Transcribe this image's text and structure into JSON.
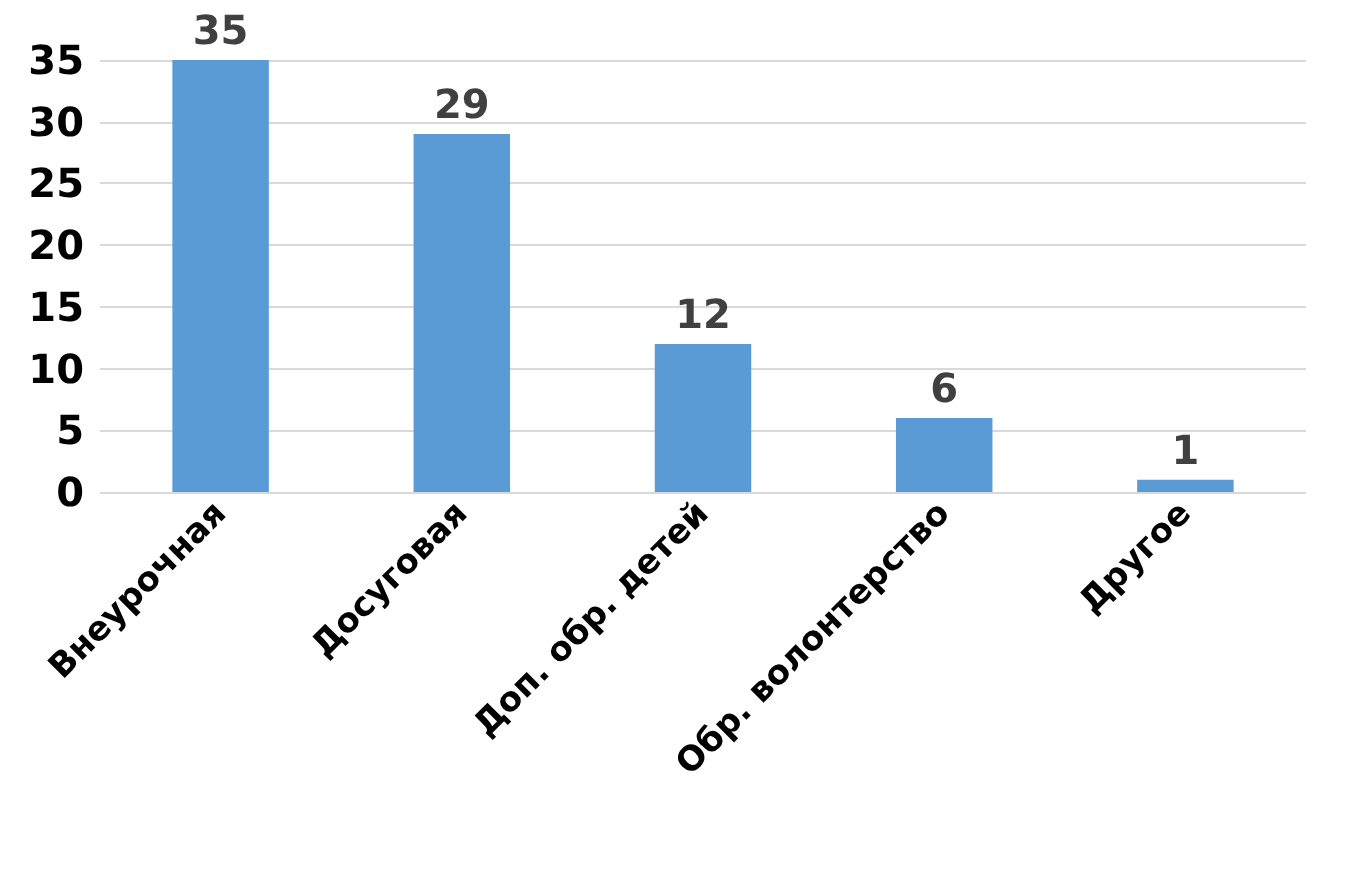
{
  "chart_data": {
    "type": "bar",
    "categories": [
      "Внеурочная",
      "Досуговая",
      "Доп. обр. детей",
      "Обр. волонтерство",
      "Другое"
    ],
    "values": [
      35,
      29,
      12,
      6,
      1
    ],
    "color": "#5b9bd5",
    "ylim": [
      0,
      35
    ],
    "yticks": [
      0,
      5,
      10,
      15,
      20,
      25,
      30,
      35
    ],
    "grid": true,
    "data_labels": true
  }
}
